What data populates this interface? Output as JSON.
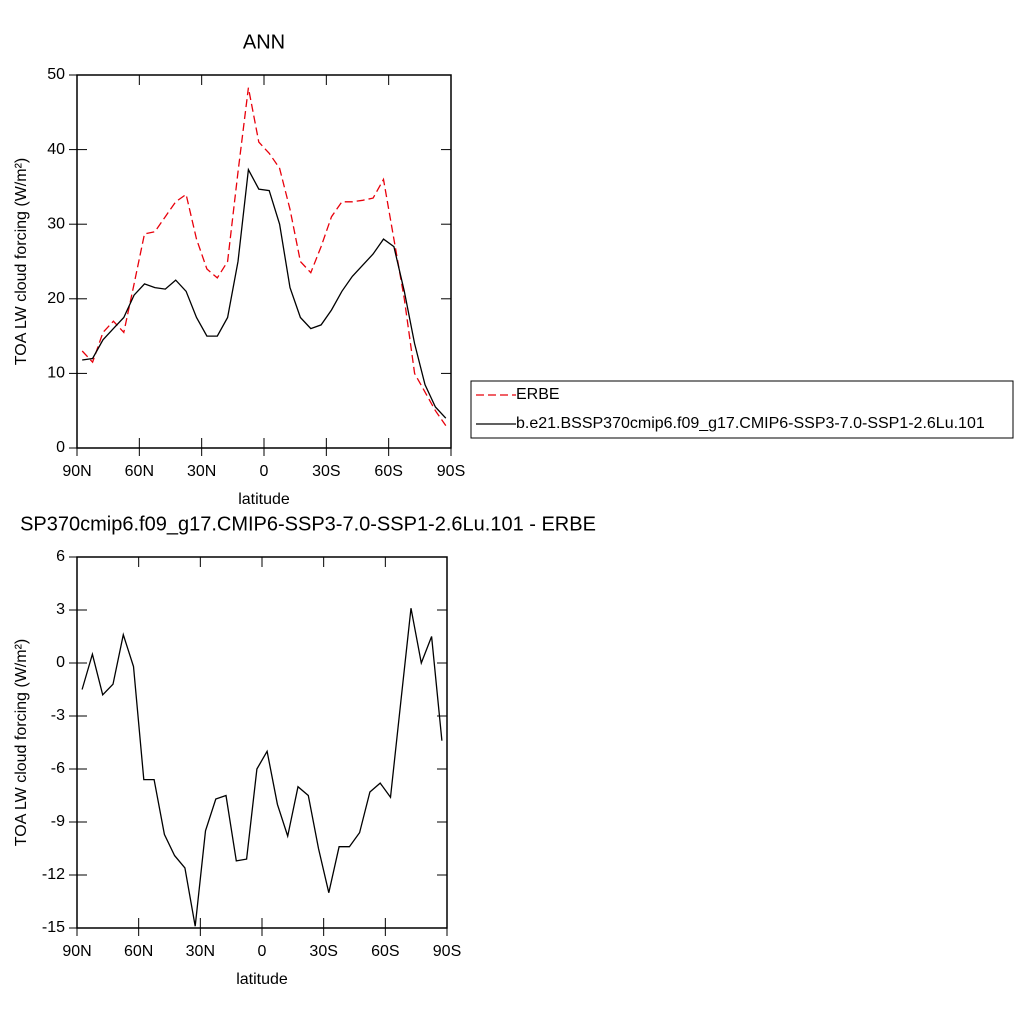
{
  "chart_data": [
    {
      "type": "line",
      "title": "ANN",
      "xlabel": "latitude",
      "ylabel": "TOA LW cloud forcing (W/m²)",
      "x": [
        87.5,
        82.5,
        77.5,
        72.5,
        67.5,
        62.5,
        57.5,
        52.5,
        47.5,
        42.5,
        37.5,
        32.5,
        27.5,
        22.5,
        17.5,
        12.5,
        7.5,
        2.5,
        -2.5,
        -7.5,
        -12.5,
        -17.5,
        -22.5,
        -27.5,
        -32.5,
        -37.5,
        -42.5,
        -47.5,
        -52.5,
        -57.5,
        -62.5,
        -67.5,
        -72.5,
        -77.5,
        -82.5,
        -87.5
      ],
      "series": [
        {
          "name": "ERBE",
          "color": "#e8000b",
          "line_style": "dashed",
          "values": [
            13,
            11.5,
            15.5,
            17,
            15.5,
            22,
            28.7,
            29,
            31,
            33,
            34,
            28,
            24,
            22.8,
            25,
            37,
            48.3,
            41,
            39.5,
            37.5,
            32,
            25,
            23.5,
            27,
            31,
            33,
            33,
            33.2,
            33.5,
            36,
            28,
            20,
            10,
            7.5,
            5,
            3
          ]
        },
        {
          "name": "b.e21.BSSP370cmip6.f09_g17.CMIP6-SSP3-7.0-SSP1-2.6Lu.101",
          "color": "#000000",
          "line_style": "solid",
          "values": [
            11.8,
            12,
            14.5,
            16,
            17.5,
            20.5,
            22,
            21.5,
            21.3,
            22.5,
            21,
            17.5,
            15,
            15,
            17.5,
            25,
            37.3,
            34.7,
            34.5,
            30,
            21.5,
            17.5,
            16,
            16.5,
            18.5,
            21,
            23,
            24.5,
            26,
            28,
            27,
            21,
            14,
            8.5,
            5.5,
            4
          ]
        }
      ],
      "xlim": [
        90,
        -90
      ],
      "xticks": [
        {
          "value": 90,
          "label": "90N"
        },
        {
          "value": 60,
          "label": "60N"
        },
        {
          "value": 30,
          "label": "30N"
        },
        0,
        {
          "value": -30,
          "label": "30S"
        },
        {
          "value": -60,
          "label": "60S"
        },
        {
          "value": -90,
          "label": "90S"
        }
      ],
      "ylim": [
        0,
        50
      ],
      "yticks": [
        0,
        10,
        20,
        30,
        40,
        50
      ]
    },
    {
      "type": "line",
      "title": "SP370cmip6.f09_g17.CMIP6-SSP3-7.0-SSP1-2.6Lu.101 - ERBE",
      "xlabel": "latitude",
      "ylabel": "TOA LW cloud forcing (W/m²)",
      "x": [
        87.5,
        82.5,
        77.5,
        72.5,
        67.5,
        62.5,
        57.5,
        52.5,
        47.5,
        42.5,
        37.5,
        32.5,
        27.5,
        22.5,
        17.5,
        12.5,
        7.5,
        2.5,
        -2.5,
        -7.5,
        -12.5,
        -17.5,
        -22.5,
        -27.5,
        -32.5,
        -37.5,
        -42.5,
        -47.5,
        -52.5,
        -57.5,
        -62.5,
        -67.5,
        -72.5,
        -77.5,
        -82.5,
        -87.5
      ],
      "series": [
        {
          "color": "#000000",
          "line_style": "solid",
          "values": [
            -1.5,
            0.5,
            -1.8,
            -1.2,
            1.6,
            -0.2,
            -6.6,
            -6.6,
            -9.7,
            -10.9,
            -11.6,
            -14.9,
            -9.5,
            -7.7,
            -7.5,
            -11.2,
            -11.1,
            -6,
            -5,
            -8,
            -9.8,
            -7,
            -7.5,
            -10.5,
            -13,
            -10.4,
            -10.4,
            -9.6,
            -7.3,
            -6.8,
            -7.6,
            -2.2,
            3.1,
            0,
            1.5,
            -4.4
          ]
        }
      ],
      "xlim": [
        90,
        -90
      ],
      "xticks": [
        {
          "value": 90,
          "label": "90N"
        },
        {
          "value": 60,
          "label": "60N"
        },
        {
          "value": 30,
          "label": "30N"
        },
        0,
        {
          "value": -30,
          "label": "30S"
        },
        {
          "value": -60,
          "label": "60S"
        },
        {
          "value": -90,
          "label": "90S"
        }
      ],
      "ylim": [
        -15,
        6
      ],
      "yticks": [
        -15,
        -12,
        -9,
        -6,
        -3,
        0,
        3,
        6
      ]
    }
  ]
}
